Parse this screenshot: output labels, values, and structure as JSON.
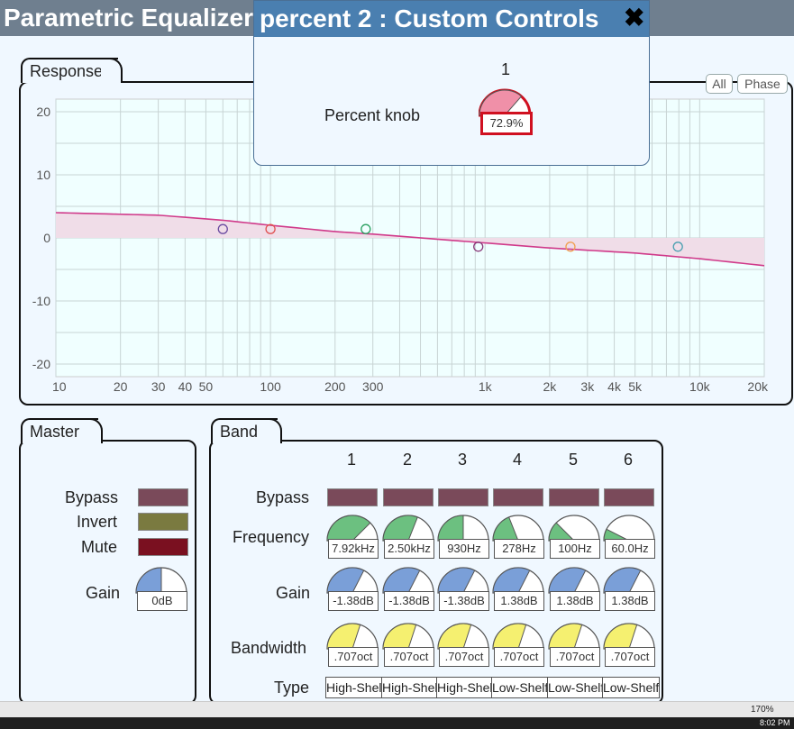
{
  "app": {
    "title": "Parametric Equalizer"
  },
  "popup": {
    "title": "percent 2 : Custom Controls",
    "col": "1",
    "knob_label": "Percent knob",
    "knob_value": "72.9%",
    "knob_fraction": 0.729
  },
  "response": {
    "tab": "Response",
    "all_button": "All",
    "phase_button": "Phase",
    "y_ticks": [
      "20",
      "10",
      "0",
      "-10",
      "-20"
    ],
    "x_ticks": [
      "10",
      "20",
      "30",
      "40",
      "50",
      "100",
      "200",
      "300",
      "1k",
      "2k",
      "3k",
      "4k",
      "5k",
      "10k",
      "20k"
    ]
  },
  "chart_data": {
    "type": "line",
    "x_scale": "log",
    "xlim": [
      10,
      20000
    ],
    "ylim": [
      -22,
      22
    ],
    "ylabel": "",
    "xlabel": "",
    "curve": {
      "x": [
        10,
        30,
        60,
        100,
        200,
        300,
        500,
        1000,
        2000,
        5000,
        10000,
        20000
      ],
      "y": [
        4.0,
        3.6,
        2.8,
        2.0,
        1.0,
        0.6,
        0.0,
        -0.8,
        -1.6,
        -2.4,
        -3.3,
        -4.4
      ]
    },
    "band_points": [
      {
        "band": 1,
        "x": 60,
        "y": 1.4,
        "color": "#6a4aa0"
      },
      {
        "band": 2,
        "x": 100,
        "y": 1.4,
        "color": "#e05050"
      },
      {
        "band": 3,
        "x": 278,
        "y": 1.4,
        "color": "#2aa060"
      },
      {
        "band": 4,
        "x": 930,
        "y": -1.4,
        "color": "#8a3a7a"
      },
      {
        "band": 5,
        "x": 2500,
        "y": -1.4,
        "color": "#f0a050"
      },
      {
        "band": 6,
        "x": 7920,
        "y": -1.4,
        "color": "#4aa0b0"
      }
    ]
  },
  "master": {
    "tab": "Master",
    "bypass_label": "Bypass",
    "invert_label": "Invert",
    "mute_label": "Mute",
    "gain_label": "Gain",
    "gain_value": "0dB"
  },
  "band": {
    "tab": "Band",
    "bypass_label": "Bypass",
    "frequency_label": "Frequency",
    "gain_label": "Gain",
    "bandwidth_label": "Bandwidth",
    "type_label": "Type",
    "columns": [
      {
        "num": "1",
        "freq": "7.92kHz",
        "gain": "-1.38dB",
        "bw": ".707oct",
        "type": "High-Shelf"
      },
      {
        "num": "2",
        "freq": "2.50kHz",
        "gain": "-1.38dB",
        "bw": ".707oct",
        "type": "High-Shelf"
      },
      {
        "num": "3",
        "freq": "930Hz",
        "gain": "-1.38dB",
        "bw": ".707oct",
        "type": "High-Shelf"
      },
      {
        "num": "4",
        "freq": "278Hz",
        "gain": "1.38dB",
        "bw": ".707oct",
        "type": "Low-Shelf"
      },
      {
        "num": "5",
        "freq": "100Hz",
        "gain": "1.38dB",
        "bw": ".707oct",
        "type": "Low-Shelf"
      },
      {
        "num": "6",
        "freq": "60.0Hz",
        "gain": "1.38dB",
        "bw": ".707oct",
        "type": "Low-Shelf"
      }
    ],
    "freq_fractions": [
      0.75,
      0.62,
      0.5,
      0.38,
      0.25,
      0.15
    ],
    "gain_fractions": [
      0.65,
      0.65,
      0.65,
      0.65,
      0.65,
      0.65
    ],
    "bw_fractions": [
      0.6,
      0.6,
      0.6,
      0.6,
      0.6,
      0.6
    ]
  },
  "status": {
    "zoom": "170%",
    "clock": "8:02 PM"
  },
  "colors": {
    "freq": "#6cc080",
    "gain": "#7a9fd8",
    "bw": "#f5f070",
    "percent": "#f090a8",
    "curve": "#d03a8a",
    "fill": "#f0dde8"
  }
}
